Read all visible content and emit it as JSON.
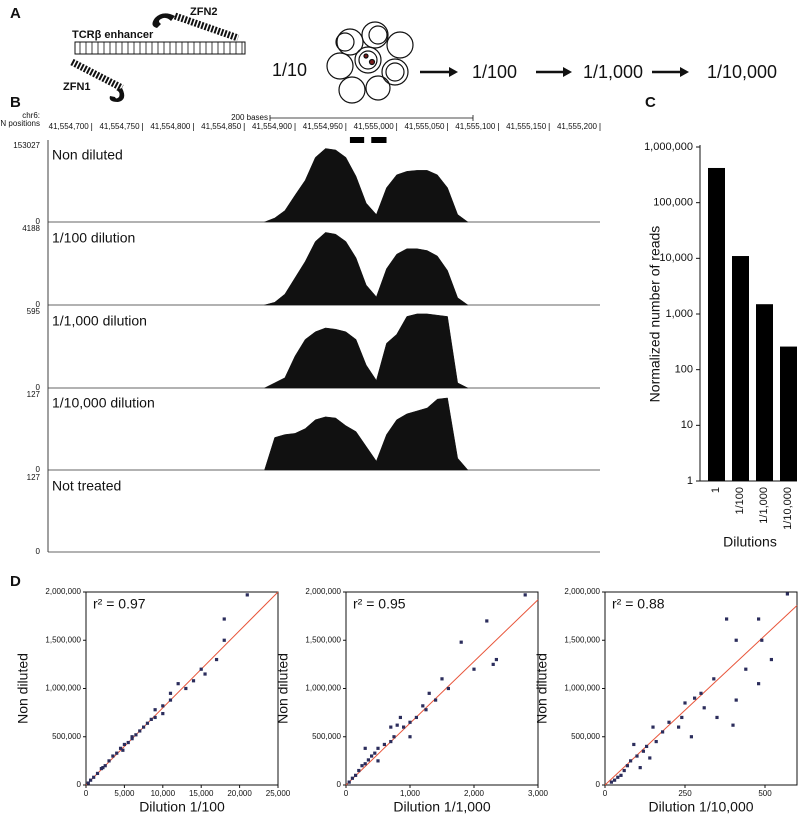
{
  "panel_labels": [
    "A",
    "B",
    "C",
    "D"
  ],
  "panel_a": {
    "zfn2": "ZFN2",
    "enhancer": "TCRβ enhancer",
    "zfn1": "ZFN1",
    "dilutions": [
      "1/10",
      "1/100",
      "1/1,000",
      "1/10,000"
    ]
  },
  "chart_data": [
    {
      "type": "coverage",
      "chrom": "chr6:",
      "zfn_label": "ZFN positions",
      "scale_label": "200 bases",
      "xlim": [
        41554657,
        41555200
      ],
      "xticks": [
        {
          "value": 41554700,
          "label": "41,554,700"
        },
        {
          "value": 41554750,
          "label": "41,554,750"
        },
        {
          "value": 41554800,
          "label": "41,554,800"
        },
        {
          "value": 41554850,
          "label": "41,554,850"
        },
        {
          "value": 41554900,
          "label": "41,554,900"
        },
        {
          "value": 41554950,
          "label": "41,554,950"
        },
        {
          "value": 41555000,
          "label": "41,555,000"
        },
        {
          "value": 41555050,
          "label": "41,555,050"
        },
        {
          "value": 41555100,
          "label": "41,555,100"
        },
        {
          "value": 41555150,
          "label": "41,555,150"
        },
        {
          "value": 41555200,
          "label": "41,555,200"
        }
      ],
      "zfn_positions": [
        [
          41554954,
          41554968
        ],
        [
          41554975,
          41554990
        ]
      ],
      "x": [
        41554870,
        41554880,
        41554890,
        41554900,
        41554910,
        41554920,
        41554930,
        41554940,
        41554950,
        41554960,
        41554970,
        41554980,
        41554990,
        41555000,
        41555010,
        41555020,
        41555030,
        41555040,
        41555050,
        41555060,
        41555070
      ],
      "color": "#111111",
      "tracks": [
        {
          "name": "Non diluted",
          "ylim": [
            0,
            153027
          ],
          "yticks": [
            0,
            153027
          ],
          "values": [
            0,
            8000,
            23000,
            54000,
            84000,
            130000,
            148000,
            145000,
            130000,
            92000,
            38000,
            15000,
            69000,
            95000,
            102000,
            104000,
            104000,
            95000,
            69000,
            15000,
            0
          ]
        },
        {
          "name": "1/100 dilution",
          "ylim": [
            0,
            4188
          ],
          "yticks": [
            0,
            4188
          ],
          "values": [
            0,
            150,
            600,
            1500,
            2400,
            3500,
            4000,
            3900,
            3500,
            2600,
            1100,
            450,
            2000,
            2800,
            3100,
            3100,
            3000,
            2700,
            1900,
            400,
            0
          ]
        },
        {
          "name": "1/1,000 dilution",
          "ylim": [
            0,
            595
          ],
          "yticks": [
            0,
            595
          ],
          "values": [
            0,
            40,
            80,
            250,
            380,
            440,
            470,
            460,
            440,
            380,
            180,
            60,
            350,
            420,
            560,
            580,
            580,
            570,
            560,
            40,
            0
          ]
        },
        {
          "name": "1/10,000 dilution",
          "ylim": [
            0,
            127
          ],
          "yticks": [
            0,
            127
          ],
          "values": [
            0,
            55,
            60,
            62,
            70,
            85,
            90,
            88,
            75,
            65,
            40,
            15,
            60,
            85,
            95,
            100,
            105,
            120,
            122,
            20,
            0
          ]
        },
        {
          "name": "Not treated",
          "ylim": [
            0,
            127
          ],
          "yticks": [
            0,
            127
          ]
        }
      ]
    },
    {
      "type": "bar",
      "ylabel": "Normalized number of reads",
      "xlabel": "Dilutions",
      "categories": [
        "1",
        "1/100",
        "1/1,000",
        "1/10,000"
      ],
      "values": [
        420000,
        11000,
        1500,
        260
      ],
      "color": "#000000",
      "log": true,
      "ylim": [
        1,
        1000000
      ],
      "yticks": [
        1,
        10,
        100,
        {
          "value": 1000,
          "label": "1,000"
        },
        {
          "value": 10000,
          "label": "10,000"
        },
        {
          "value": 100000,
          "label": "100,000"
        },
        {
          "value": 1000000,
          "label": "1,000,000"
        }
      ]
    },
    {
      "type": "scatter",
      "xlabel": "Dilution 1/100",
      "ylabel": "Non diluted",
      "r2_text": "r² = 0.97",
      "color": "#2b2d5c",
      "fit_color": "#e8553a",
      "fit_slope": 80,
      "xlim": [
        0,
        25000
      ],
      "xticks": [
        0,
        {
          "value": 5000,
          "label": "5,000"
        },
        {
          "value": 10000,
          "label": "10,000"
        },
        {
          "value": 15000,
          "label": "15,000"
        },
        {
          "value": 20000,
          "label": "20,000"
        },
        {
          "value": 25000,
          "label": "25,000"
        }
      ],
      "ylim": [
        0,
        2000000
      ],
      "yticks": [
        0,
        {
          "value": 500000,
          "label": "500,000"
        },
        {
          "value": 1000000,
          "label": "1,000,000"
        },
        {
          "value": 1500000,
          "label": "1,500,000"
        },
        {
          "value": 2000000,
          "label": "2,000,000"
        }
      ],
      "x": [
        21000,
        18000,
        18000,
        17000,
        15000,
        14000,
        13000,
        11000,
        11000,
        10000,
        10000,
        9000,
        8500,
        8000,
        7500,
        7000,
        6500,
        6000,
        5500,
        5000,
        4500,
        4000,
        3500,
        3000,
        2500,
        2000,
        1500,
        1000,
        600,
        300,
        12000,
        15500,
        9000,
        6000,
        4800,
        2200
      ],
      "values": [
        1970000,
        1720000,
        1500000,
        1300000,
        1200000,
        1080000,
        1000000,
        950000,
        880000,
        820000,
        740000,
        700000,
        680000,
        640000,
        600000,
        560000,
        520000,
        480000,
        440000,
        420000,
        380000,
        330000,
        300000,
        250000,
        200000,
        170000,
        120000,
        80000,
        50000,
        20000,
        1050000,
        1150000,
        780000,
        500000,
        360000,
        180000
      ]
    },
    {
      "type": "scatter",
      "xlabel": "Dilution 1/1,000",
      "ylabel": "Non diluted",
      "r2_text": "r² = 0.95",
      "color": "#2b2d5c",
      "fit_color": "#e8553a",
      "fit_slope": 640,
      "xlim": [
        0,
        3000
      ],
      "xticks": [
        0,
        {
          "value": 1000,
          "label": "1,000"
        },
        {
          "value": 2000,
          "label": "2,000"
        },
        {
          "value": 3000,
          "label": "3,000"
        }
      ],
      "ylim": [
        0,
        2000000
      ],
      "yticks": [
        0,
        {
          "value": 500000,
          "label": "500,000"
        },
        {
          "value": 1000000,
          "label": "1,000,000"
        },
        {
          "value": 1500000,
          "label": "1,500,000"
        },
        {
          "value": 2000000,
          "label": "2,000,000"
        }
      ],
      "x": [
        2800,
        2200,
        1800,
        2350,
        2300,
        2000,
        1500,
        1600,
        1300,
        1400,
        1200,
        1100,
        1000,
        900,
        800,
        750,
        700,
        600,
        500,
        450,
        400,
        350,
        300,
        250,
        200,
        150,
        100,
        50,
        1000,
        700,
        1250,
        500,
        300,
        850
      ],
      "values": [
        1970000,
        1700000,
        1480000,
        1300000,
        1250000,
        1200000,
        1100000,
        1000000,
        950000,
        880000,
        820000,
        700000,
        650000,
        600000,
        620000,
        500000,
        450000,
        420000,
        380000,
        330000,
        300000,
        260000,
        220000,
        200000,
        150000,
        100000,
        70000,
        30000,
        500000,
        600000,
        780000,
        250000,
        380000,
        700000
      ]
    },
    {
      "type": "scatter",
      "xlabel": "Dilution 1/10,000",
      "ylabel": "Non diluted",
      "r2_text": "r² = 0.88",
      "color": "#2b2d5c",
      "fit_color": "#e8553a",
      "fit_slope": 3100,
      "xlim": [
        0,
        600
      ],
      "xticks": [
        0,
        250,
        500
      ],
      "ylim": [
        0,
        2000000
      ],
      "yticks": [
        0,
        {
          "value": 500000,
          "label": "500,000"
        },
        {
          "value": 1000000,
          "label": "1,000,000"
        },
        {
          "value": 1500000,
          "label": "1,500,000"
        },
        {
          "value": 2000000,
          "label": "2,000,000"
        }
      ],
      "x": [
        570,
        480,
        490,
        380,
        410,
        520,
        440,
        480,
        410,
        340,
        300,
        310,
        280,
        250,
        240,
        230,
        200,
        180,
        160,
        150,
        130,
        120,
        100,
        90,
        80,
        70,
        60,
        50,
        40,
        30,
        20,
        400,
        350,
        270,
        140,
        110
      ],
      "values": [
        1980000,
        1720000,
        1500000,
        1720000,
        1500000,
        1300000,
        1200000,
        1050000,
        880000,
        1100000,
        950000,
        800000,
        900000,
        850000,
        700000,
        600000,
        650000,
        550000,
        450000,
        600000,
        400000,
        350000,
        300000,
        420000,
        250000,
        200000,
        150000,
        100000,
        80000,
        50000,
        30000,
        620000,
        700000,
        500000,
        280000,
        180000
      ]
    }
  ]
}
